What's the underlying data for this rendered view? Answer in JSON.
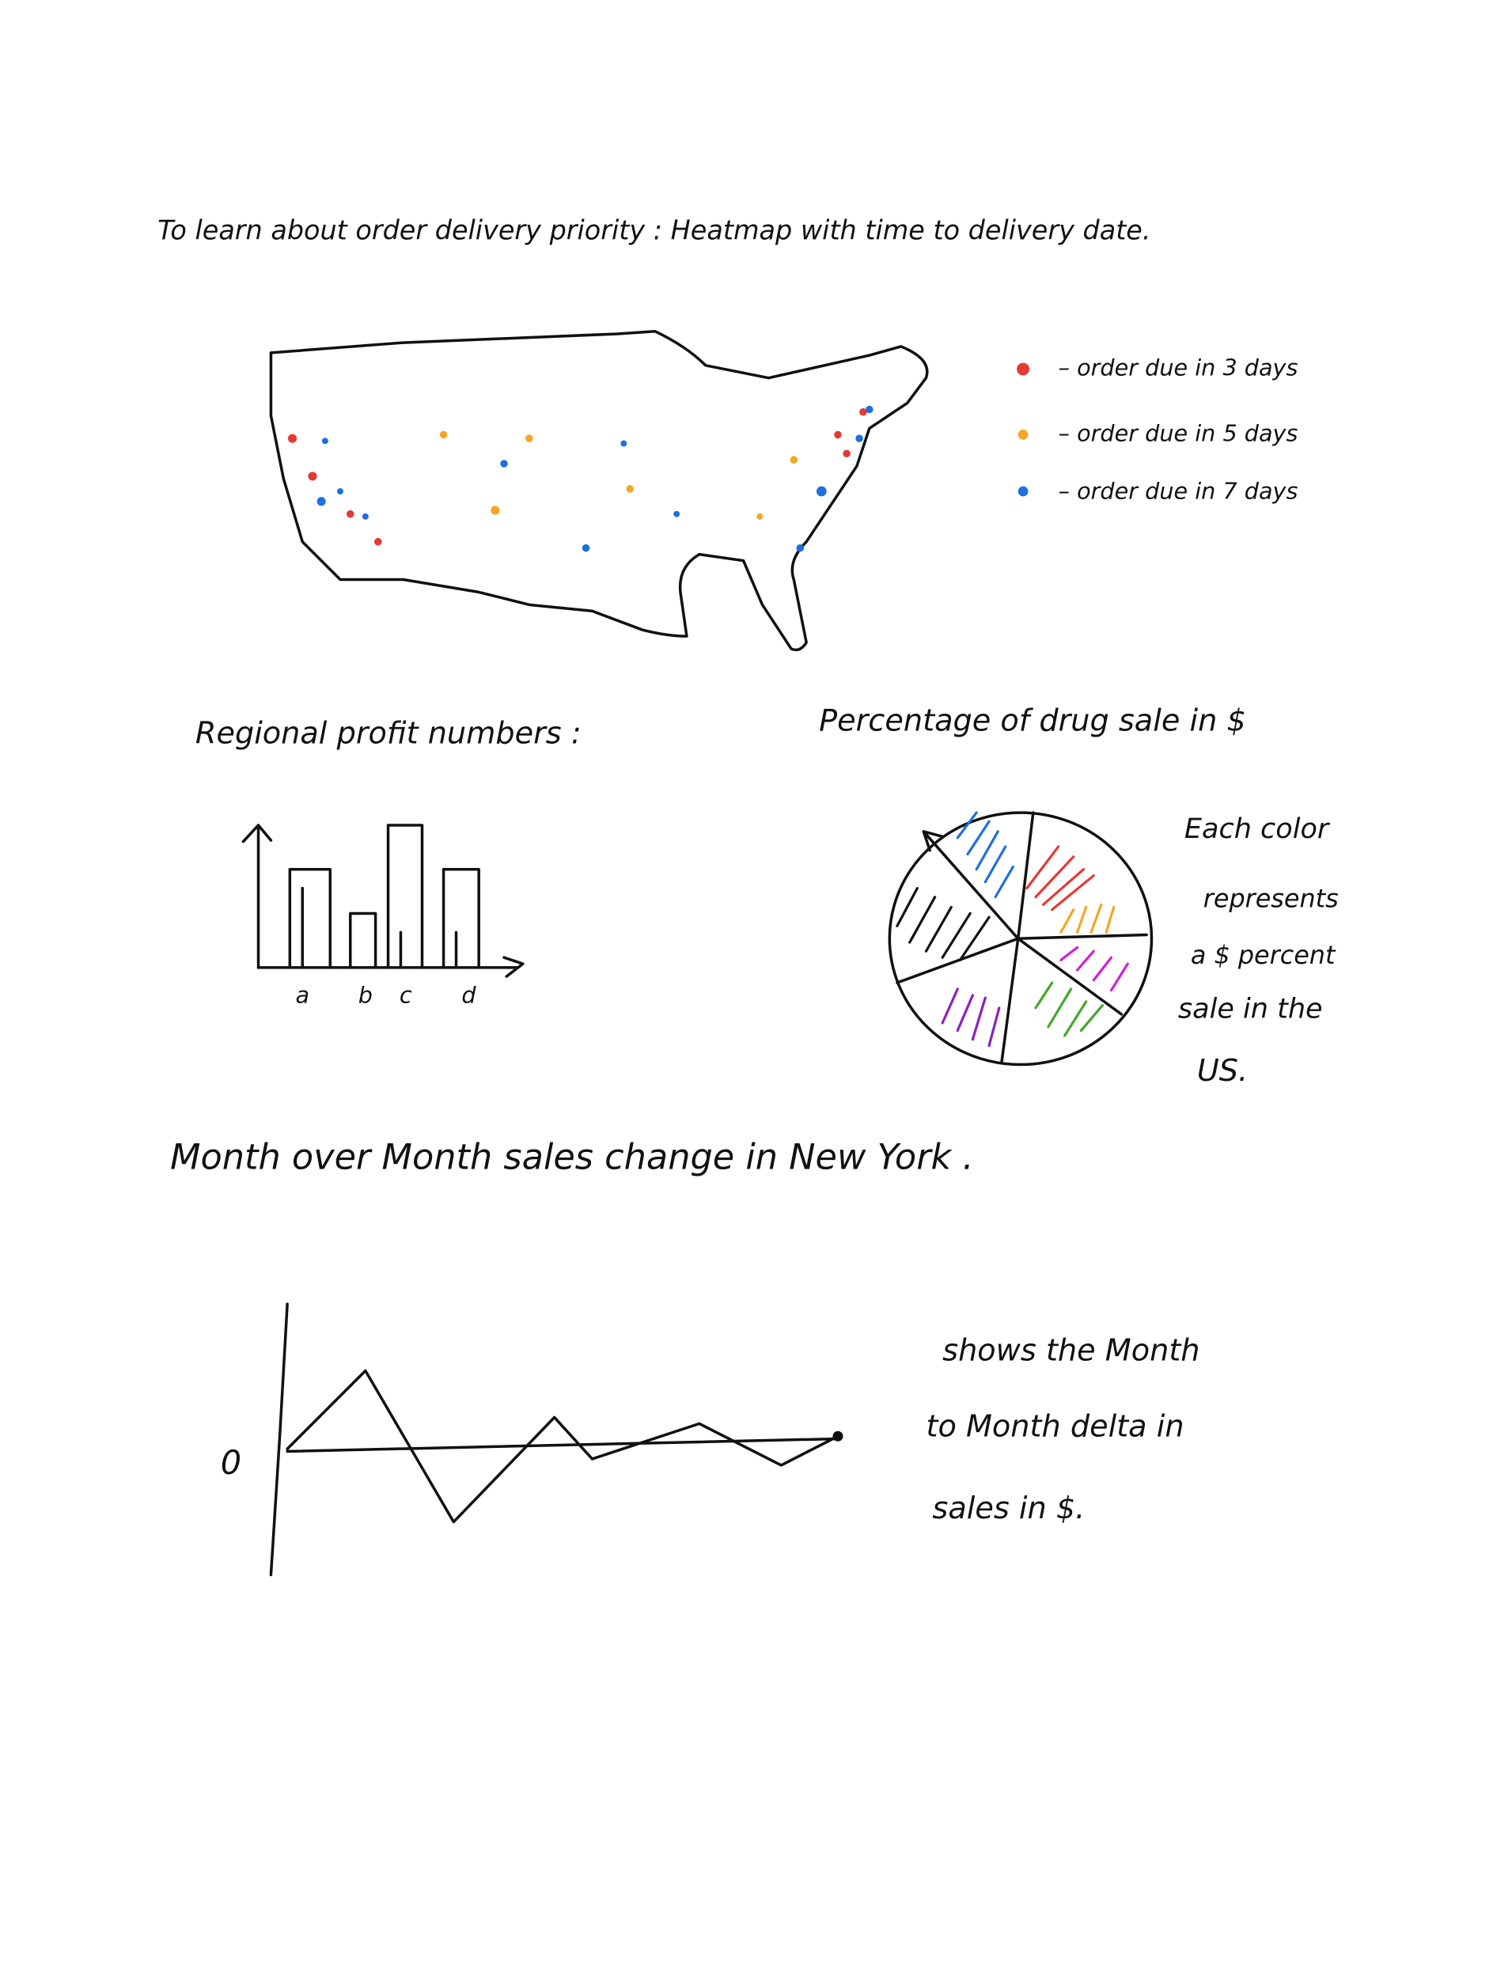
{
  "title": "To learn about order delivery priority : Heatmap with time to delivery date.",
  "map": {
    "legend": [
      "– order due in 3 days",
      "– order due in 5 days",
      "– order due in 7 days"
    ]
  },
  "bar_sketch": {
    "title": "Regional profit numbers :",
    "categories": [
      "a",
      "b",
      "c",
      "d"
    ]
  },
  "pie_sketch": {
    "title": "Percentage of drug sale in $",
    "note": [
      "Each color",
      "represents",
      "a $ percent",
      "sale in the",
      "US."
    ]
  },
  "line_sketch": {
    "title": "Month over Month sales change in New York .",
    "y_label": "0",
    "note": [
      "shows the Month",
      "to Month delta in",
      "sales in $."
    ]
  }
}
